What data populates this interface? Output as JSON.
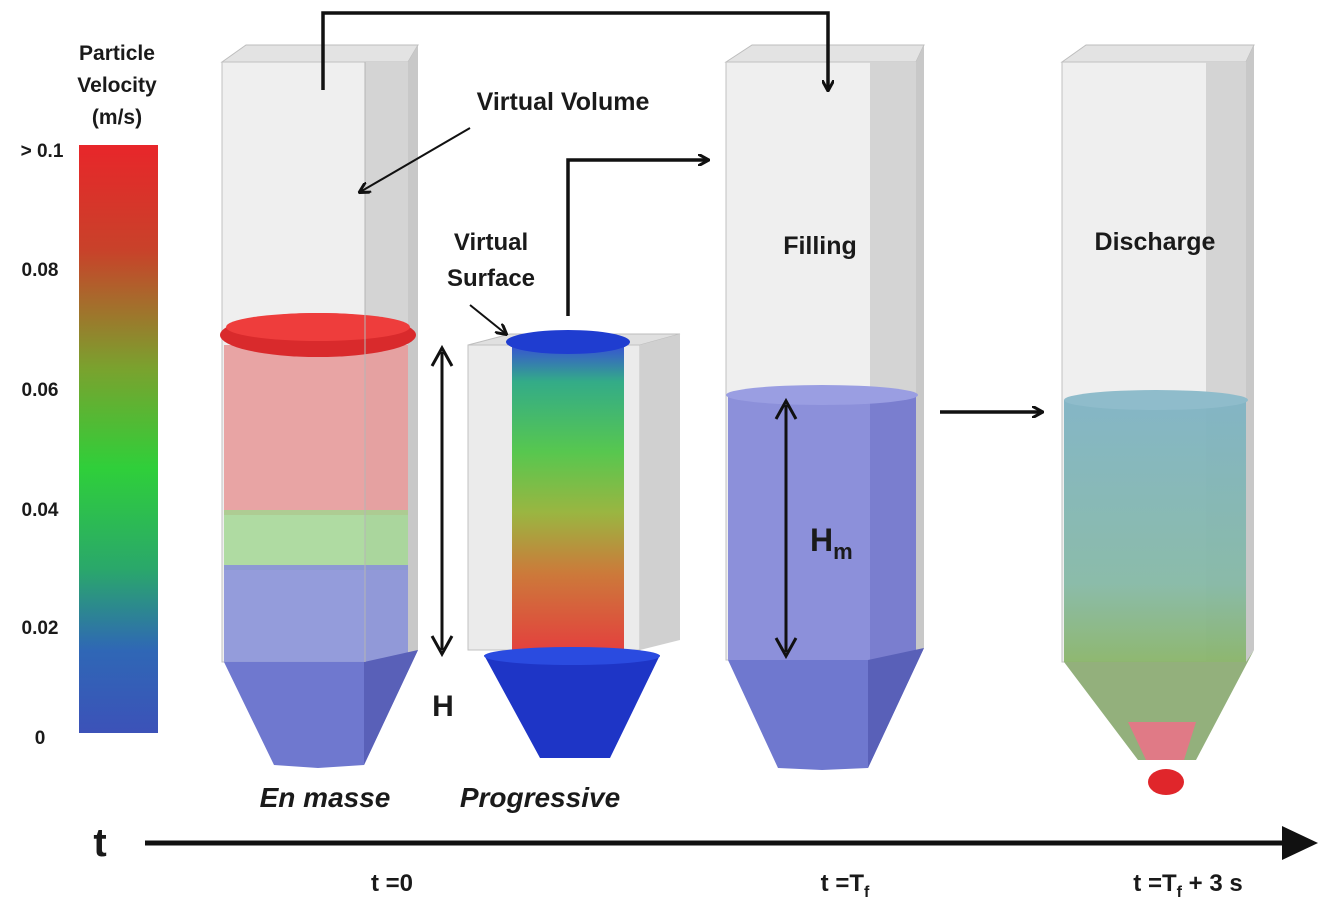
{
  "legend": {
    "title_lines": [
      "Particle",
      "Velocity",
      "(m/s)"
    ],
    "ticks": [
      "> 0.1",
      "0.08",
      "0.06",
      "0.04",
      "0.02",
      "0"
    ],
    "colors": [
      "#e8262a",
      "#2fcf3a",
      "#3c52b8"
    ]
  },
  "labels": {
    "virtual_volume": "Virtual Volume",
    "virtual_surface_1": "Virtual",
    "virtual_surface_2": "Surface",
    "filling": "Filling",
    "discharge": "Discharge",
    "en_masse": "En masse",
    "progressive": "Progressive",
    "height": "H",
    "height_m_base": "H",
    "height_m_sub": "m"
  },
  "timeline": {
    "axis": "t",
    "t0": "t =0",
    "tf_base": "t =T",
    "tf_sub": "f",
    "tf3_base": "t =T",
    "tf3_sub": "f",
    "tf3_suffix": " + 3 s"
  },
  "colors": {
    "particle_red": "#e0262b",
    "particle_blue": "#2a3fb0",
    "filled_blue": "#7f86d6",
    "discharge_teal": "#86b6c6",
    "wall": "#cfcfcf"
  }
}
